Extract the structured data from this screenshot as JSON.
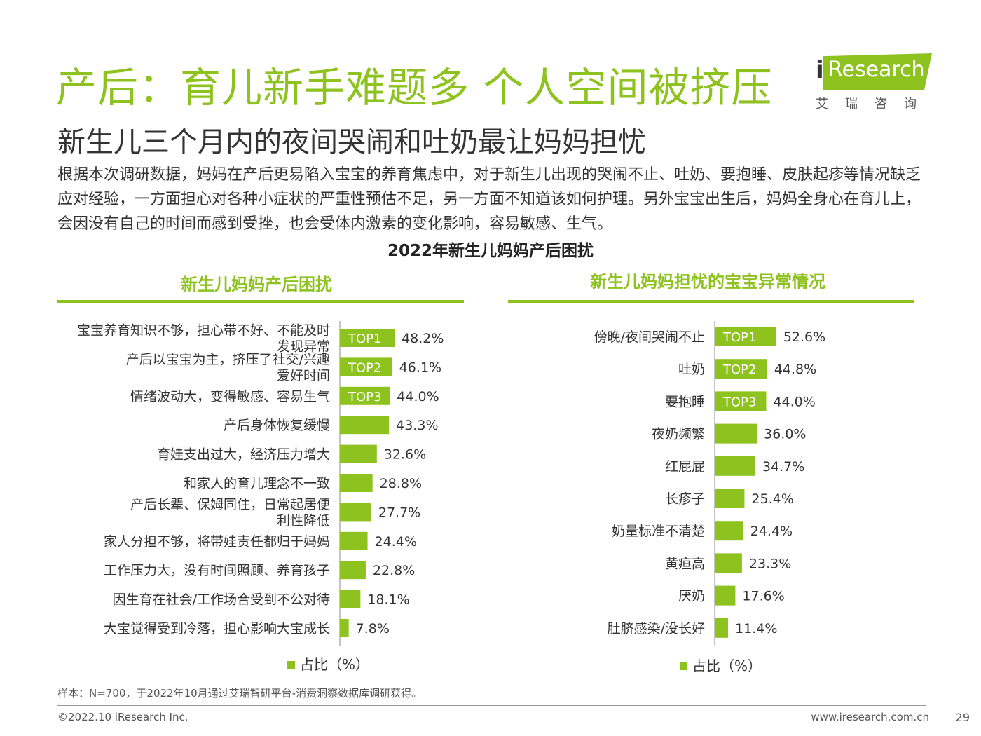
{
  "header": {
    "title": "产后：育儿新手难题多 个人空间被挤压",
    "subtitle": "新生儿三个月内的夜间哭闹和吐奶最让妈妈担忧",
    "description": "根据本次调研数据，妈妈在产后更易陷入宝宝的养育焦虑中，对于新生儿出现的哭闹不止、吐奶、要抱睡、皮肤起疹等情况缺乏应对经验，一方面担心对各种小症状的严重性预估不足，另一方面不知道该如何护理。另外宝宝出生后，妈妈全身心在育儿上，会因没有自己的时间而感到受挫，也会受体内激素的变化影响，容易敏感、生气。"
  },
  "logo": {
    "prefix": "i",
    "name": "Research",
    "sub": "艾瑞咨询"
  },
  "colors": {
    "accent": "#8dc21f",
    "text": "#333333"
  },
  "figure_title": "2022年新生儿妈妈产后困扰",
  "chart_data": [
    {
      "type": "bar",
      "orientation": "horizontal",
      "title": "新生儿妈妈产后困扰",
      "legend": "占比（%）",
      "legend_position": "bottom",
      "xlim": [
        0,
        60
      ],
      "unit": "%",
      "categories": [
        "宝宝养育知识不够，担心带不好、不能及时发现异常",
        "产后以宝宝为主，挤压了社交/兴趣爱好时间",
        "情绪波动大，变得敏感、容易生气",
        "产后身体恢复缓慢",
        "育娃支出过大，经济压力增大",
        "和家人的育儿理念不一致",
        "产后长辈、保姆同住，日常起居便利性降低",
        "家人分担不够，将带娃责任都归于妈妈",
        "工作压力大，没有时间照顾、养育孩子",
        "因生育在社会/工作场合受到不公对待",
        "大宝觉得受到冷落，担心影响大宝成长"
      ],
      "values": [
        48.2,
        46.1,
        44.0,
        43.3,
        32.6,
        28.8,
        27.7,
        24.4,
        22.8,
        18.1,
        7.8
      ],
      "value_labels": [
        "48.2%",
        "46.1%",
        "44.0%",
        "43.3%",
        "32.6%",
        "28.8%",
        "27.7%",
        "24.4%",
        "22.8%",
        "18.1%",
        "7.8%"
      ],
      "top_labels": [
        "TOP1",
        "TOP2",
        "TOP3"
      ]
    },
    {
      "type": "bar",
      "orientation": "horizontal",
      "title": "新生儿妈妈担忧的宝宝异常情况",
      "legend": "占比（%）",
      "legend_position": "bottom",
      "xlim": [
        0,
        60
      ],
      "unit": "%",
      "categories": [
        "傍晚/夜间哭闹不止",
        "吐奶",
        "要抱睡",
        "夜奶频繁",
        "红屁屁",
        "长疹子",
        "奶量标准不清楚",
        "黄疸高",
        "厌奶",
        "肚脐感染/没长好"
      ],
      "values": [
        52.6,
        44.8,
        44.0,
        36.0,
        34.7,
        25.4,
        24.4,
        23.3,
        17.6,
        11.4
      ],
      "value_labels": [
        "52.6%",
        "44.8%",
        "44.0%",
        "36.0%",
        "34.7%",
        "25.4%",
        "24.4%",
        "23.3%",
        "17.6%",
        "11.4%"
      ],
      "top_labels": [
        "TOP1",
        "TOP2",
        "TOP3"
      ]
    }
  ],
  "footer": {
    "note": "样本：N=700，于2022年10月通过艾瑞智研平台-消费洞察数据库调研获得。",
    "copyright": "©2022.10 iResearch Inc.",
    "site": "www.iresearch.com.cn",
    "page": "29"
  }
}
